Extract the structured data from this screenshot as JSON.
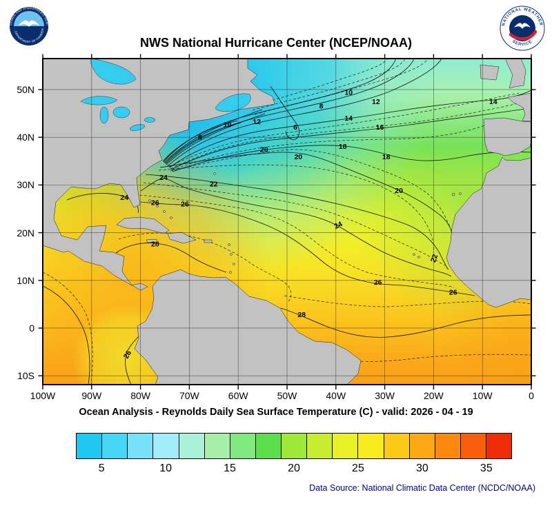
{
  "header": {
    "title": "NWS National Hurricane Center (NCEP/NOAA)",
    "noaa_logo": {
      "ring_text_top": "NATIONAL OCEANIC AND ATMOSPHERIC ADMINISTRATION",
      "ring_text_bottom": "U.S. DEPARTMENT OF COMMERCE"
    },
    "nws_logo": {
      "ring_text_top": "NATIONAL WEATHER",
      "ring_text_bottom": "SERVICE"
    }
  },
  "map": {
    "lat_labels": [
      "50N",
      "40N",
      "30N",
      "20N",
      "10N",
      "0",
      "10S"
    ],
    "lat_values": [
      50,
      40,
      30,
      20,
      10,
      0,
      -10
    ],
    "lon_labels": [
      "100W",
      "90W",
      "80W",
      "70W",
      "60W",
      "50W",
      "40W",
      "30W",
      "20W",
      "10W",
      "0"
    ],
    "lon_values": [
      100,
      90,
      80,
      70,
      60,
      50,
      40,
      30,
      20,
      10,
      0
    ],
    "isotherm_unit": "C",
    "isotherm_labels": [
      {
        "v": "6",
        "lon": 48.3,
        "lat": 42.0
      },
      {
        "v": "8",
        "lon": 43.0,
        "lat": 46.4
      },
      {
        "v": "8",
        "lon": 67.8,
        "lat": 39.9
      },
      {
        "v": "10",
        "lon": 37.4,
        "lat": 49.3
      },
      {
        "v": "10",
        "lon": 62.2,
        "lat": 42.5
      },
      {
        "v": "12",
        "lon": 31.8,
        "lat": 47.4
      },
      {
        "v": "12",
        "lon": 56.2,
        "lat": 43.2
      },
      {
        "v": "14",
        "lon": 7.8,
        "lat": 47.4
      },
      {
        "v": "14",
        "lon": 37.4,
        "lat": 43.9
      },
      {
        "v": "16",
        "lon": 31.0,
        "lat": 42.0
      },
      {
        "v": "18",
        "lon": 38.6,
        "lat": 38.0
      },
      {
        "v": "18",
        "lon": 29.7,
        "lat": 35.8
      },
      {
        "v": "20",
        "lon": 54.7,
        "lat": 37.3
      },
      {
        "v": "20",
        "lon": 47.7,
        "lat": 35.8
      },
      {
        "v": "20",
        "lon": 27.1,
        "lat": 28.7
      },
      {
        "v": "22",
        "lon": 65.0,
        "lat": 30.1
      },
      {
        "v": "22",
        "lon": 19.8,
        "lat": 14.6,
        "rot": -70
      },
      {
        "v": "24",
        "lon": 75.3,
        "lat": 31.5
      },
      {
        "v": "24",
        "lon": 83.3,
        "lat": 27.3
      },
      {
        "v": "24",
        "lon": 39.5,
        "lat": 21.5,
        "rot": -25
      },
      {
        "v": "26",
        "lon": 77.0,
        "lat": 26.2
      },
      {
        "v": "26",
        "lon": 70.9,
        "lat": 25.9
      },
      {
        "v": "26",
        "lon": 31.4,
        "lat": 9.5
      },
      {
        "v": "26",
        "lon": 16.0,
        "lat": 7.4
      },
      {
        "v": "26",
        "lon": 82.6,
        "lat": -5.6,
        "rot": -60
      },
      {
        "v": "28",
        "lon": 77.0,
        "lat": 17.5
      },
      {
        "v": "28",
        "lon": 47.0,
        "lat": 2.7
      }
    ]
  },
  "caption": "Ocean Analysis - Reynolds Daily Sea Surface Temperature (C) - valid: 2026 - 04 - 19",
  "colorbar": {
    "range_min": 3,
    "range_max": 37,
    "ticks": [
      5,
      10,
      15,
      20,
      25,
      30,
      35
    ],
    "colors": [
      "#1ec8f0",
      "#46d6f6",
      "#78e2fa",
      "#a0ecfa",
      "#acf2d8",
      "#a6efa8",
      "#7fe87f",
      "#5cdf4b",
      "#a0e838",
      "#c8ec30",
      "#e8f028",
      "#f8ec20",
      "#fbc918",
      "#fca814",
      "#fc8810",
      "#f85e0c",
      "#ee2c08"
    ]
  },
  "source": "Data Source: National Climatic Data Center (NCDC/NOAA)"
}
